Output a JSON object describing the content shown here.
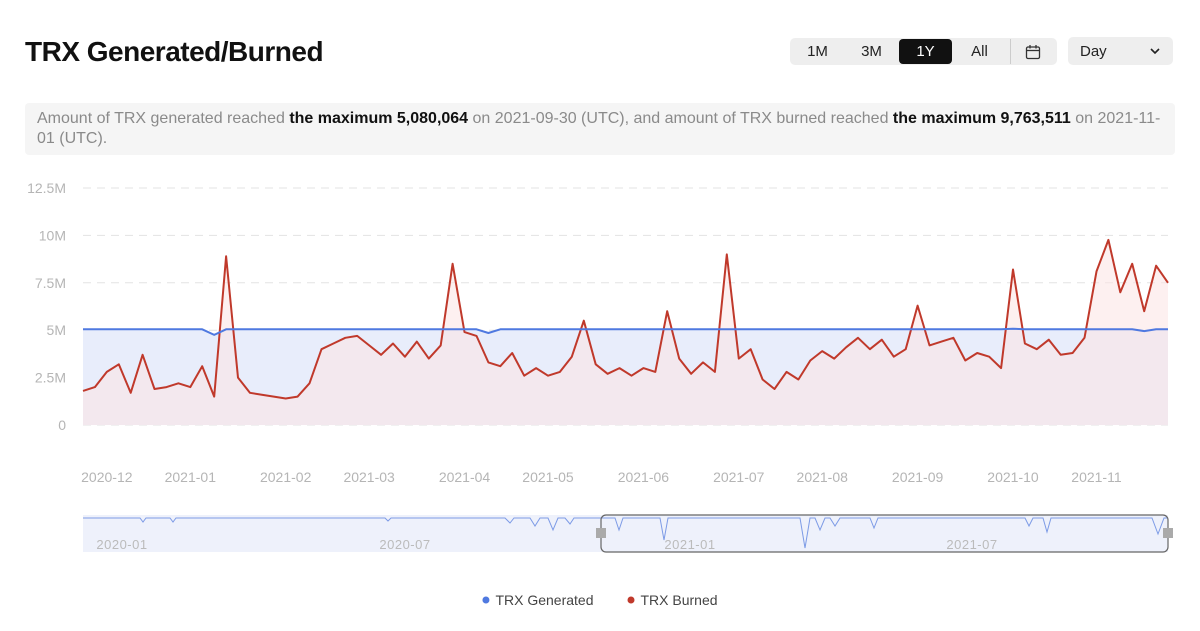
{
  "controls": {
    "ranges": [
      "1M",
      "3M",
      "1Y",
      "All"
    ],
    "active_range": "1Y",
    "interval": "Day"
  },
  "summary": [
    {
      "text": "Amount of TRX generated reached ",
      "bold": false
    },
    {
      "text": "the maximum 5,080,064",
      "bold": true
    },
    {
      "text": " on 2021-09-30 (UTC), and amount of TRX burned reached ",
      "bold": false
    },
    {
      "text": "the maximum 9,763,511",
      "bold": true
    },
    {
      "text": " on 2021-11-01 (UTC).",
      "bold": false
    }
  ],
  "navigator": {
    "labels": [
      "2020-01",
      "2020-07",
      "2021-01",
      "2021-07"
    ]
  },
  "chart_data": {
    "type": "line",
    "title": "TRX Generated/Burned",
    "categories": [
      null,
      null,
      "2020-12",
      null,
      null,
      null,
      null,
      null,
      null,
      "2021-01",
      null,
      null,
      null,
      null,
      null,
      null,
      null,
      "2021-02",
      null,
      null,
      null,
      null,
      null,
      null,
      "2021-03",
      null,
      null,
      null,
      null,
      null,
      null,
      null,
      "2021-04",
      null,
      null,
      null,
      null,
      null,
      null,
      "2021-05",
      null,
      null,
      null,
      null,
      null,
      null,
      null,
      "2021-06",
      null,
      null,
      null,
      null,
      null,
      null,
      null,
      "2021-07",
      null,
      null,
      null,
      null,
      null,
      null,
      "2021-08",
      null,
      null,
      null,
      null,
      null,
      null,
      null,
      "2021-09",
      null,
      null,
      null,
      null,
      null,
      null,
      null,
      "2021-10",
      null,
      null,
      null,
      null,
      null,
      null,
      "2021-11",
      null,
      null,
      null,
      null,
      null,
      null
    ],
    "series": [
      {
        "name": "TRX Generated",
        "color": "#4f79e0",
        "fill": "#e8edfb",
        "values": [
          5050000,
          5050000,
          5050000,
          5050000,
          5050000,
          5050000,
          5050000,
          5050000,
          5050000,
          5050000,
          5050000,
          4750000,
          5050000,
          5050000,
          5050000,
          5050000,
          5050000,
          5050000,
          5050000,
          5050000,
          5050000,
          5050000,
          5050000,
          5050000,
          5050000,
          5050000,
          5050000,
          5050000,
          5050000,
          5050000,
          5050000,
          5050000,
          5050000,
          5050000,
          4850000,
          5050000,
          5050000,
          5050000,
          5050000,
          5050000,
          5050000,
          5050000,
          5050000,
          5050000,
          5050000,
          5050000,
          5050000,
          5050000,
          5050000,
          5050000,
          5050000,
          5050000,
          5050000,
          5050000,
          5050000,
          5050000,
          5050000,
          5050000,
          5050000,
          5050000,
          5050000,
          5050000,
          5050000,
          5050000,
          5050000,
          5050000,
          5050000,
          5050000,
          5050000,
          5050000,
          5050000,
          5050000,
          5050000,
          5050000,
          5050000,
          5050000,
          5050000,
          5050000,
          5080064,
          5050000,
          5050000,
          5050000,
          5050000,
          5050000,
          5050000,
          5050000,
          5050000,
          5050000,
          5050000,
          4950000,
          5050000,
          5050000
        ]
      },
      {
        "name": "TRX Burned",
        "color": "#c0392b",
        "fill": "#fbe3e3",
        "values": [
          1800000,
          2000000,
          2800000,
          3200000,
          1700000,
          3700000,
          1900000,
          2000000,
          2200000,
          2000000,
          3100000,
          1500000,
          8900000,
          2500000,
          1700000,
          1600000,
          1500000,
          1400000,
          1500000,
          2200000,
          4000000,
          4300000,
          4600000,
          4700000,
          4200000,
          3700000,
          4300000,
          3600000,
          4400000,
          3500000,
          4200000,
          8500000,
          4900000,
          4700000,
          3300000,
          3100000,
          3800000,
          2600000,
          3000000,
          2600000,
          2800000,
          3600000,
          5500000,
          3200000,
          2700000,
          3000000,
          2600000,
          3000000,
          2800000,
          6000000,
          3500000,
          2700000,
          3300000,
          2800000,
          9000000,
          3500000,
          4000000,
          2400000,
          1900000,
          2800000,
          2400000,
          3400000,
          3900000,
          3500000,
          4100000,
          4600000,
          4000000,
          4500000,
          3600000,
          4000000,
          6300000,
          4200000,
          4400000,
          4600000,
          3400000,
          3800000,
          3600000,
          3000000,
          8200000,
          4300000,
          4000000,
          4500000,
          3700000,
          3800000,
          4600000,
          8100000,
          9763511,
          7000000,
          8500000,
          6000000,
          8400000,
          7500000
        ]
      }
    ],
    "ylim": [
      0,
      12500000
    ],
    "yticks": [
      0,
      {
        "value": 2500000,
        "label": "2.5M"
      },
      {
        "value": 5000000,
        "label": "5M"
      },
      {
        "value": 7500000,
        "label": "7.5M"
      },
      {
        "value": 10000000,
        "label": "10M"
      },
      {
        "value": 12500000,
        "label": "12.5M"
      }
    ],
    "grid": true,
    "legend": "bottom"
  }
}
